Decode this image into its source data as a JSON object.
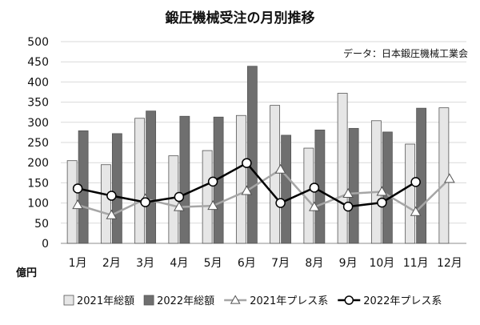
{
  "chart_data": {
    "type": "bar",
    "title": "鍛圧機械受注の月別推移",
    "source": "データ：日本鍛圧機械工業会",
    "ylabel": "億円",
    "xlabel": "",
    "ylim": [
      0,
      500
    ],
    "yticks": [
      0,
      50,
      100,
      150,
      200,
      250,
      300,
      350,
      400,
      450,
      500
    ],
    "grid": true,
    "legend_position": "bottom",
    "categories": [
      "1月",
      "2月",
      "3月",
      "4月",
      "5月",
      "6月",
      "7月",
      "8月",
      "9月",
      "10月",
      "11月",
      "12月"
    ],
    "bar_series": [
      {
        "name": "2021年総額",
        "color": "#e6e6e6",
        "values": [
          205,
          195,
          310,
          217,
          230,
          317,
          342,
          236,
          372,
          304,
          246,
          336
        ]
      },
      {
        "name": "2022年総額",
        "color": "#6f6f6f",
        "values": [
          279,
          272,
          328,
          315,
          313,
          439,
          268,
          281,
          285,
          276,
          335,
          null
        ]
      }
    ],
    "line_series": [
      {
        "name": "2021年プレス系",
        "color": "#a6a6a6",
        "marker": "triangle",
        "values": [
          95,
          70,
          110,
          90,
          93,
          130,
          183,
          90,
          123,
          128,
          78,
          160
        ]
      },
      {
        "name": "2022年プレス系",
        "color": "#000000",
        "marker": "circle",
        "values": [
          136,
          118,
          102,
          115,
          153,
          199,
          100,
          138,
          91,
          101,
          152,
          null
        ]
      }
    ]
  }
}
